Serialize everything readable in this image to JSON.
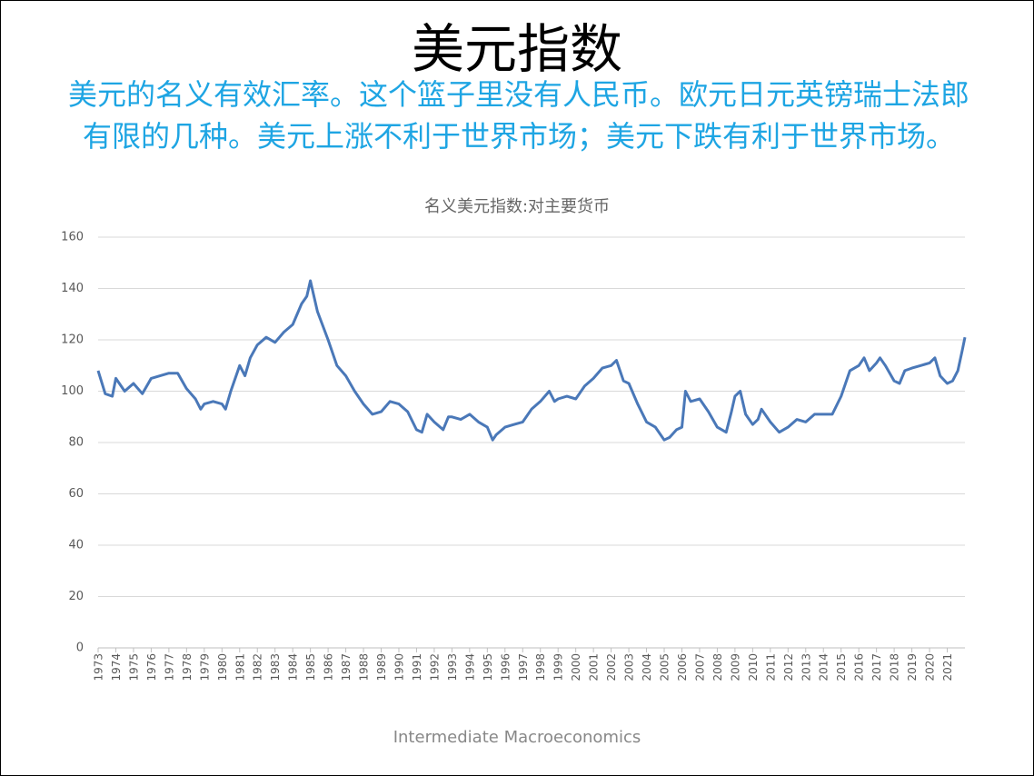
{
  "title": "美元指数",
  "subtitle": "美元的名义有效汇率。这个篮子里没有人民币。欧元日元英镑瑞士法郎有限的几种。美元上涨不利于世界市场；美元下跌有利于世界市场。",
  "footer": "Intermediate Macroeconomics",
  "chart_data": {
    "type": "line",
    "title": "名义美元指数:对主要货币",
    "x": [
      1973.0,
      1973.4,
      1973.8,
      1974.0,
      1974.5,
      1975.0,
      1975.5,
      1976.0,
      1976.5,
      1977.0,
      1977.5,
      1978.0,
      1978.5,
      1978.8,
      1979.0,
      1979.5,
      1980.0,
      1980.2,
      1980.5,
      1981.0,
      1981.3,
      1981.6,
      1982.0,
      1982.5,
      1983.0,
      1983.5,
      1984.0,
      1984.5,
      1984.8,
      1985.0,
      1985.4,
      1986.0,
      1986.5,
      1987.0,
      1987.5,
      1988.0,
      1988.5,
      1989.0,
      1989.5,
      1990.0,
      1990.5,
      1991.0,
      1991.3,
      1991.6,
      1992.0,
      1992.5,
      1992.8,
      1993.0,
      1993.5,
      1994.0,
      1994.5,
      1995.0,
      1995.3,
      1995.5,
      1996.0,
      1996.5,
      1997.0,
      1997.5,
      1998.0,
      1998.5,
      1998.8,
      1999.0,
      1999.5,
      2000.0,
      2000.5,
      2001.0,
      2001.5,
      2002.0,
      2002.3,
      2002.7,
      2003.0,
      2003.5,
      2004.0,
      2004.5,
      2005.0,
      2005.3,
      2005.7,
      2006.0,
      2006.2,
      2006.5,
      2007.0,
      2007.5,
      2008.0,
      2008.5,
      2008.8,
      2009.0,
      2009.3,
      2009.6,
      2010.0,
      2010.3,
      2010.5,
      2011.0,
      2011.5,
      2012.0,
      2012.5,
      2013.0,
      2013.5,
      2014.0,
      2014.5,
      2015.0,
      2015.5,
      2016.0,
      2016.3,
      2016.6,
      2017.0,
      2017.2,
      2017.5,
      2018.0,
      2018.3,
      2018.6,
      2019.0,
      2019.5,
      2020.0,
      2020.3,
      2020.6,
      2021.0,
      2021.3,
      2021.6,
      2021.85,
      2022.0
    ],
    "series": [
      {
        "name": "名义美元指数",
        "color": "#4a78b8",
        "values": [
          108,
          99,
          98,
          105,
          100,
          103,
          99,
          105,
          106,
          107,
          107,
          101,
          97,
          93,
          95,
          96,
          95,
          93,
          100,
          110,
          106,
          113,
          118,
          121,
          119,
          123,
          126,
          134,
          137,
          143,
          131,
          120,
          110,
          106,
          100,
          95,
          91,
          92,
          96,
          95,
          92,
          85,
          84,
          91,
          88,
          85,
          90,
          90,
          89,
          91,
          88,
          86,
          81,
          83,
          86,
          87,
          88,
          93,
          96,
          100,
          96,
          97,
          98,
          97,
          102,
          105,
          109,
          110,
          112,
          104,
          103,
          95,
          88,
          86,
          81,
          82,
          85,
          86,
          100,
          96,
          97,
          92,
          86,
          84,
          92,
          98,
          100,
          91,
          87,
          89,
          93,
          88,
          84,
          86,
          89,
          88,
          91,
          91,
          91,
          98,
          108,
          110,
          113,
          108,
          111,
          113,
          110,
          104,
          103,
          108,
          109,
          110,
          111,
          113,
          106,
          103,
          104,
          108,
          116,
          121
        ]
      }
    ],
    "xlim": [
      1973,
      2022
    ],
    "xticks": [
      1973,
      1974,
      1975,
      1976,
      1977,
      1978,
      1979,
      1980,
      1981,
      1982,
      1983,
      1984,
      1985,
      1986,
      1987,
      1988,
      1989,
      1990,
      1991,
      1992,
      1993,
      1994,
      1995,
      1996,
      1997,
      1998,
      1999,
      2000,
      2001,
      2002,
      2003,
      2004,
      2005,
      2006,
      2007,
      2008,
      2009,
      2010,
      2011,
      2012,
      2013,
      2014,
      2015,
      2016,
      2017,
      2018,
      2019,
      2020,
      2021
    ],
    "ylim": [
      0,
      160
    ],
    "yticks": [
      0,
      20,
      40,
      60,
      80,
      100,
      120,
      140,
      160
    ],
    "grid": true
  }
}
